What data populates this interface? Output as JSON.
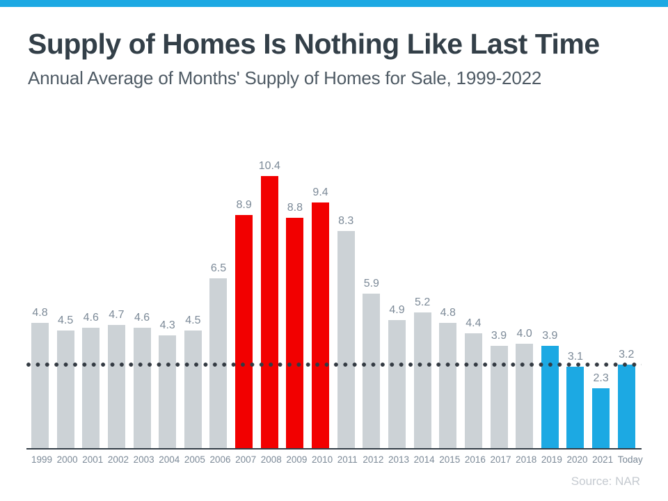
{
  "header": {
    "title": "Supply of Homes Is Nothing Like Last Time",
    "subtitle": "Annual Average of Months' Supply of Homes for Sale, 1999-2022"
  },
  "footer": {
    "source": "Source: NAR"
  },
  "colors": {
    "accent_blue": "#1CA9E3",
    "bar_gray": "#CCD2D6",
    "bar_red": "#F20000",
    "bar_blue": "#1CA9E3",
    "dotted_line": "#333A42",
    "axis_line": "#333E47",
    "title_text": "#333F48",
    "subtitle_text": "#4E5A64",
    "label_text": "#7B8997",
    "source_text": "#C5CAD0"
  },
  "chart_data": {
    "type": "bar",
    "title": "Supply of Homes Is Nothing Like Last Time",
    "subtitle": "Annual Average of Months' Supply of Homes for Sale, 1999-2022",
    "categories": [
      "1999",
      "2000",
      "2001",
      "2002",
      "2003",
      "2004",
      "2005",
      "2006",
      "2007",
      "2008",
      "2009",
      "2010",
      "2011",
      "2012",
      "2013",
      "2014",
      "2015",
      "2016",
      "2017",
      "2018",
      "2019",
      "2020",
      "2021",
      "Today"
    ],
    "values": [
      4.8,
      4.5,
      4.6,
      4.7,
      4.6,
      4.3,
      4.5,
      6.5,
      8.9,
      10.4,
      8.8,
      9.4,
      8.3,
      5.9,
      4.9,
      5.2,
      4.8,
      4.4,
      3.9,
      4.0,
      3.9,
      3.1,
      2.3,
      3.2
    ],
    "bar_colors": [
      "gray",
      "gray",
      "gray",
      "gray",
      "gray",
      "gray",
      "gray",
      "gray",
      "red",
      "red",
      "red",
      "red",
      "gray",
      "gray",
      "gray",
      "gray",
      "gray",
      "gray",
      "gray",
      "gray",
      "blue",
      "blue",
      "blue",
      "blue"
    ],
    "reference_line": {
      "value": 3.2,
      "style": "dotted"
    },
    "ylim": [
      0,
      11
    ],
    "grid": false,
    "legend": false,
    "value_labels": true,
    "source": "Source: NAR"
  }
}
